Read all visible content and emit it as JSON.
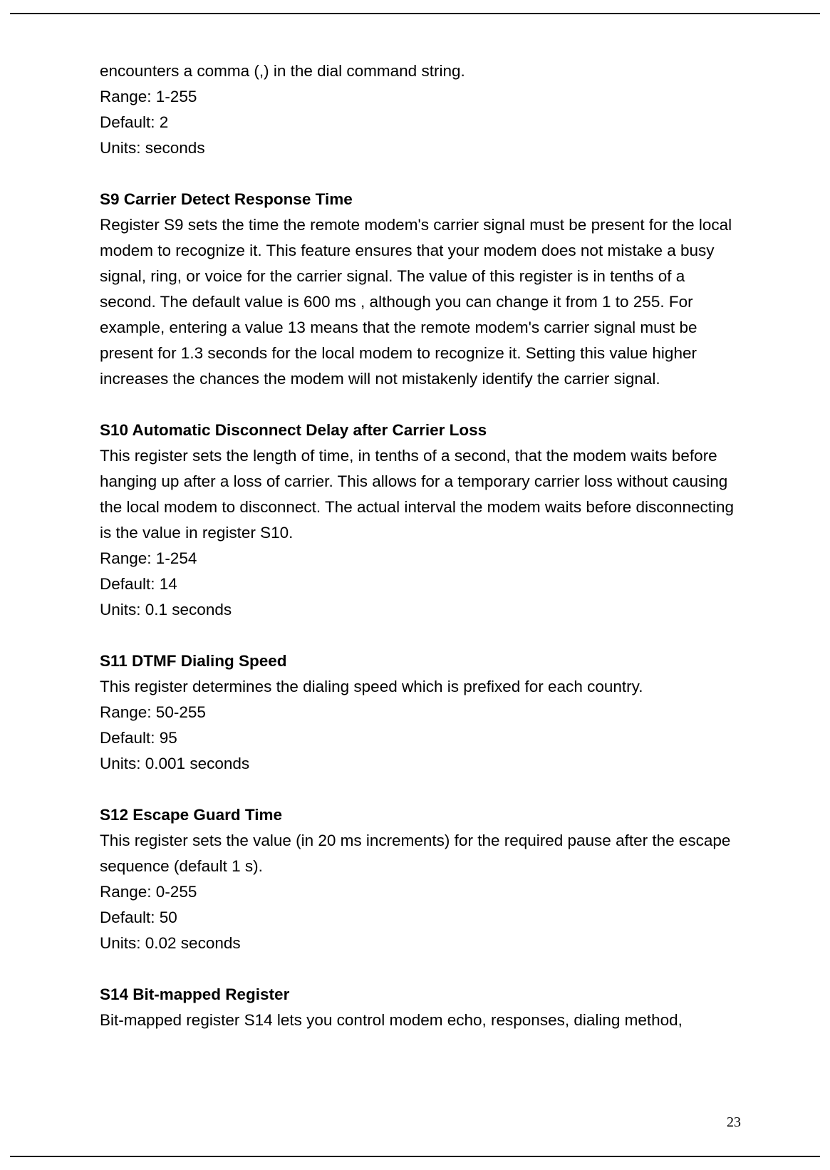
{
  "page": {
    "number": "23"
  },
  "intro": {
    "line1": "encounters a comma (,) in the dial command string.",
    "range": "Range: 1-255",
    "default": "Default: 2",
    "units": "Units: seconds"
  },
  "s9": {
    "heading": "S9 Carrier Detect Response Time",
    "body": "Register S9 sets the time the remote modem's carrier signal must be present for the local modem to recognize it. This feature ensures that your modem does not mistake a busy signal, ring, or voice for the carrier signal. The value of this register is in tenths of a second. The default value is 600 ms , although you can change it from 1 to 255. For example, entering a value 13 means that the remote modem's carrier signal must be present for 1.3 seconds for the local modem to recognize it. Setting this value higher increases the chances the modem will not mistakenly identify the carrier signal."
  },
  "s10": {
    "heading": "S10 Automatic Disconnect Delay after Carrier Loss",
    "body": "This register sets the length of time, in tenths of a second, that the modem waits before hanging up after a loss of carrier. This allows for a temporary carrier loss without causing the local modem to disconnect. The actual interval the modem waits before disconnecting is the value in register S10.",
    "range": "Range: 1-254",
    "default": "Default: 14",
    "units": "Units: 0.1 seconds"
  },
  "s11": {
    "heading": "S11 DTMF Dialing Speed",
    "body": "This register determines the dialing speed which is prefixed for each country.",
    "range": "Range: 50-255",
    "default": "Default: 95",
    "units": "Units: 0.001 seconds"
  },
  "s12": {
    "heading": "S12 Escape Guard Time",
    "body": "This register sets the value (in 20 ms increments) for the required pause after the escape sequence (default 1 s).",
    "range": "Range: 0-255",
    "default": "Default: 50",
    "units": "Units: 0.02 seconds"
  },
  "s14": {
    "heading": "S14 Bit-mapped Register",
    "body": "Bit-mapped register S14 lets you control modem echo, responses, dialing method,"
  }
}
